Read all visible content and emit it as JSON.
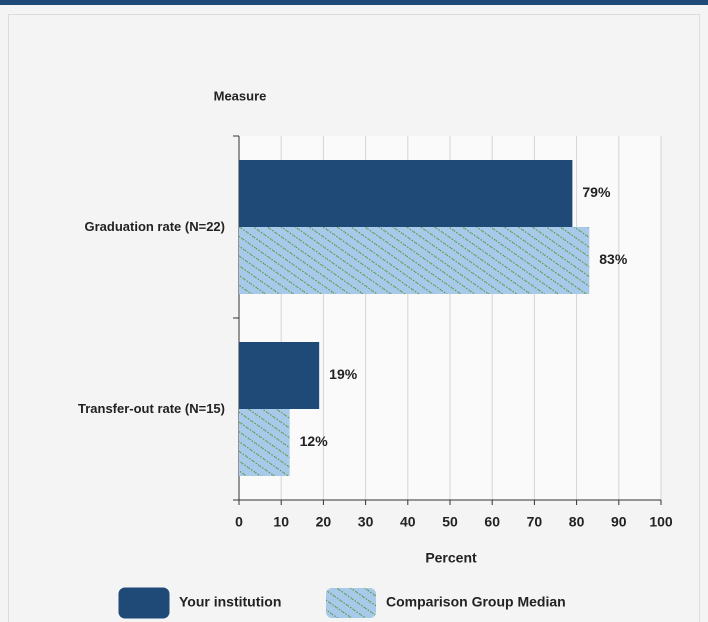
{
  "chart_data": {
    "type": "hbar",
    "category_axis_title": "Measure",
    "x_axis_title": "Percent",
    "categories": [
      "Graduation rate (N=22)",
      "Transfer-out rate (N=15)"
    ],
    "series": [
      {
        "name": "Your institution",
        "color": "#1f4a78",
        "values": [
          79,
          19
        ],
        "value_labels": [
          "79%",
          "19%"
        ]
      },
      {
        "name": "Comparison Group Median",
        "color": "#a9c9ea",
        "hatch_color": "#4f9a3a",
        "values": [
          83,
          12
        ],
        "value_labels": [
          "83%",
          "12%"
        ]
      }
    ],
    "xlim": [
      0,
      100
    ],
    "xticks": [
      0,
      10,
      20,
      30,
      40,
      50,
      60,
      70,
      80,
      90,
      100
    ],
    "grid": true,
    "legend": "bottom"
  }
}
